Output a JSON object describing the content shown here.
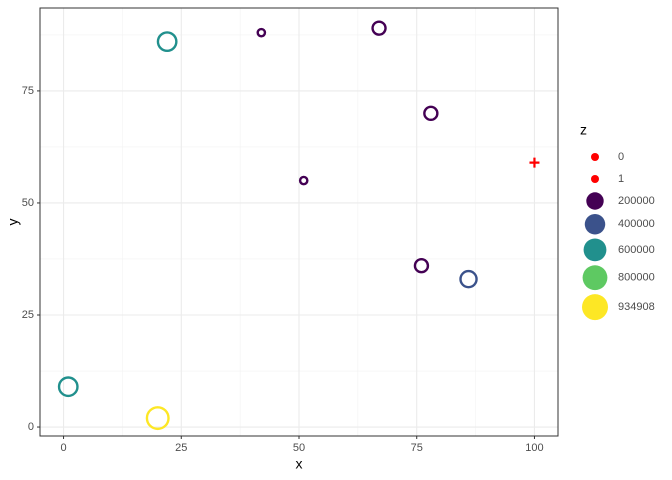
{
  "chart_data": {
    "type": "scatter",
    "x_label": "x",
    "y_label": "y",
    "x": [
      1,
      20,
      22,
      42,
      51,
      67,
      78,
      76,
      86,
      100
    ],
    "y": [
      9,
      2,
      86,
      88,
      55,
      89,
      70,
      36,
      33,
      59
    ],
    "z": [
      600000,
      934908,
      600000,
      10000,
      10000,
      200000,
      200000,
      200000,
      400000,
      0
    ],
    "colors": [
      "#21908d",
      "#fde725",
      "#21908d",
      "#440154",
      "#440154",
      "#440154",
      "#440154",
      "#440154",
      "#3b528b",
      "#ff0000"
    ],
    "shapes": [
      "circle",
      "circle",
      "circle",
      "circle",
      "circle",
      "circle",
      "circle",
      "circle",
      "circle",
      "cross"
    ],
    "xlim": [
      -5,
      105
    ],
    "ylim": [
      -2,
      93.5
    ],
    "xticks": [
      0,
      25,
      50,
      75,
      100
    ],
    "yticks": [
      0,
      25,
      50,
      75
    ],
    "grid": true,
    "legend": {
      "title": "z",
      "values": [
        0,
        1,
        200000,
        400000,
        600000,
        800000,
        934908
      ],
      "colors": [
        "#ff0000",
        "#ff0000",
        "#440154",
        "#3b528b",
        "#21908d",
        "#5ec962",
        "#fde725"
      ]
    }
  }
}
